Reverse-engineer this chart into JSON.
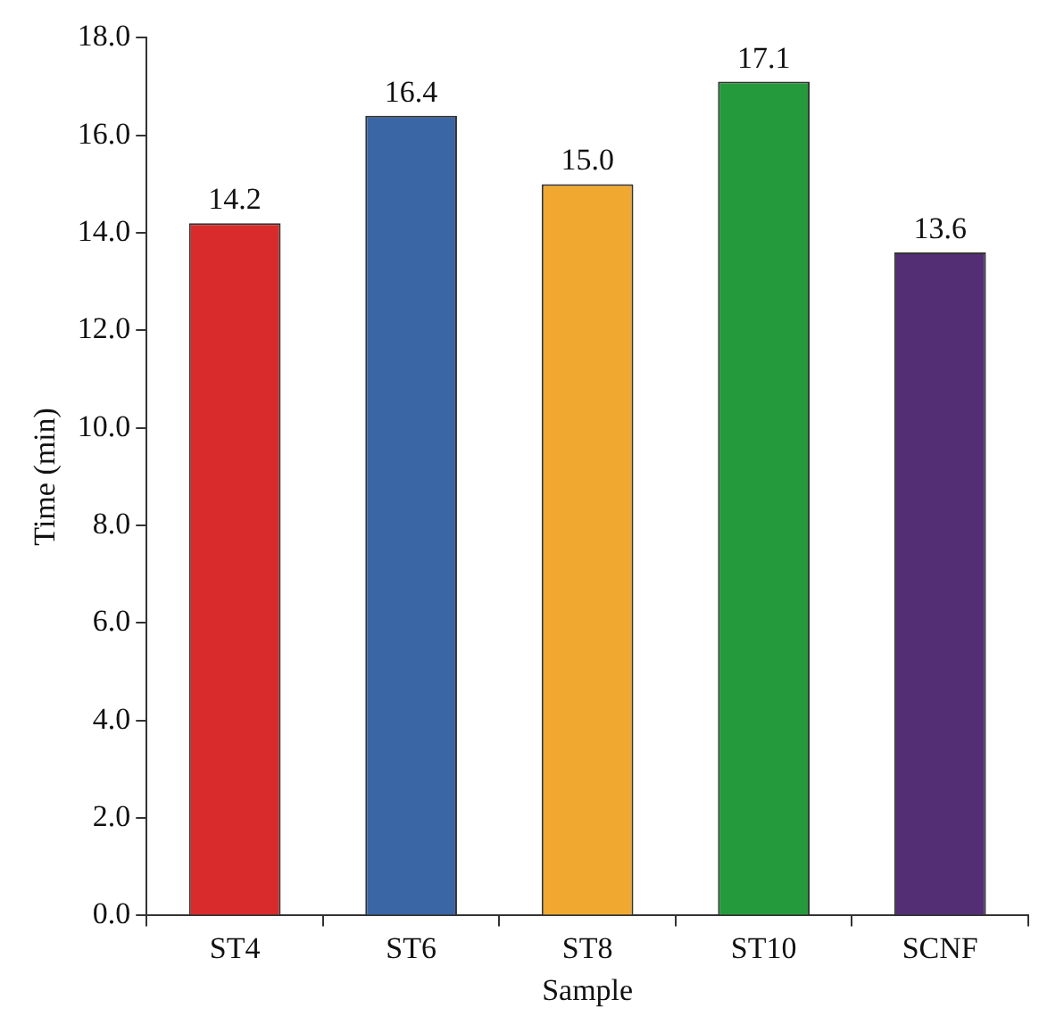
{
  "chart_data": {
    "type": "bar",
    "xlabel": "Sample",
    "ylabel": "Time (min)",
    "categories": [
      "ST4",
      "ST6",
      "ST8",
      "ST10",
      "SCNF"
    ],
    "values": [
      14.2,
      16.4,
      15.0,
      17.1,
      13.6
    ],
    "colors": [
      "#d92b2b",
      "#3a66a6",
      "#f0a830",
      "#259a3c",
      "#532e74"
    ],
    "value_labels": [
      "14.2",
      "16.4",
      "15.0",
      "17.1",
      "13.6"
    ],
    "ylim": [
      0,
      18
    ],
    "yticks": [
      {
        "value": 0,
        "label": "0.0"
      },
      {
        "value": 2,
        "label": "2.0"
      },
      {
        "value": 4,
        "label": "4.0"
      },
      {
        "value": 6,
        "label": "6.0"
      },
      {
        "value": 8,
        "label": "8.0"
      },
      {
        "value": 10,
        "label": "10.0"
      },
      {
        "value": 12,
        "label": "12.0"
      },
      {
        "value": 14,
        "label": "14.0"
      },
      {
        "value": 16,
        "label": "16.0"
      },
      {
        "value": 18,
        "label": "18.0"
      }
    ],
    "grid": false,
    "legend": false
  }
}
